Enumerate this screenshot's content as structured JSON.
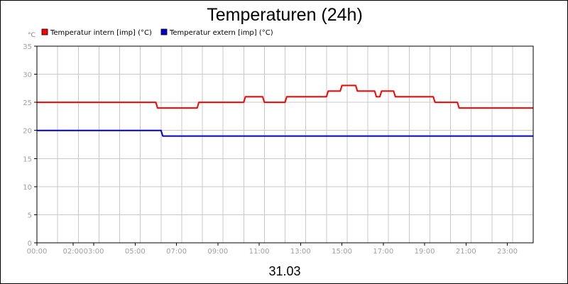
{
  "chart_data": {
    "type": "line",
    "title": "Temperaturen (24h)",
    "date_label": "31.03",
    "y_unit": "°C",
    "xlabel": "",
    "ylabel": "",
    "ylim": [
      0,
      35
    ],
    "y_ticks": [
      0,
      5,
      10,
      15,
      20,
      25,
      30,
      35
    ],
    "xlim": [
      "00:00",
      "24:00"
    ],
    "x_ticks": [
      {
        "label": "00:00",
        "t": "00:00"
      },
      {
        "label": "02:00",
        "t": "01:45"
      },
      {
        "label": "03:00",
        "t": "02:45"
      },
      {
        "label": "05:00",
        "t": "04:45"
      },
      {
        "label": "07:00",
        "t": "06:45"
      },
      {
        "label": "09:00",
        "t": "08:45"
      },
      {
        "label": "11:00",
        "t": "10:45"
      },
      {
        "label": "13:00",
        "t": "12:45"
      },
      {
        "label": "15:00",
        "t": "14:45"
      },
      {
        "label": "17:00",
        "t": "16:45"
      },
      {
        "label": "19:00",
        "t": "18:45"
      },
      {
        "label": "21:00",
        "t": "20:45"
      },
      {
        "label": "23:00",
        "t": "22:45"
      }
    ],
    "grid": true,
    "legend_position": "top-left",
    "series": [
      {
        "name": "Temperatur intern [imp] (°C)",
        "color": "#ff0000",
        "points": [
          [
            "00:00",
            25
          ],
          [
            "05:45",
            25
          ],
          [
            "05:50",
            24
          ],
          [
            "07:45",
            24
          ],
          [
            "07:50",
            25
          ],
          [
            "10:00",
            25
          ],
          [
            "10:05",
            26
          ],
          [
            "10:55",
            26
          ],
          [
            "11:00",
            25
          ],
          [
            "12:00",
            25
          ],
          [
            "12:05",
            26
          ],
          [
            "14:00",
            26
          ],
          [
            "14:05",
            27
          ],
          [
            "14:40",
            27
          ],
          [
            "14:45",
            28
          ],
          [
            "15:25",
            28
          ],
          [
            "15:30",
            27
          ],
          [
            "16:20",
            27
          ],
          [
            "16:25",
            26
          ],
          [
            "16:35",
            26
          ],
          [
            "16:40",
            27
          ],
          [
            "17:15",
            27
          ],
          [
            "17:20",
            26
          ],
          [
            "19:10",
            26
          ],
          [
            "19:15",
            25
          ],
          [
            "20:20",
            25
          ],
          [
            "20:25",
            24
          ],
          [
            "24:00",
            24
          ]
        ]
      },
      {
        "name": "Temperatur extern [imp] (°C)",
        "color": "#0000cc",
        "points": [
          [
            "00:00",
            20
          ],
          [
            "06:00",
            20
          ],
          [
            "06:05",
            19
          ],
          [
            "24:00",
            19
          ]
        ]
      }
    ]
  }
}
